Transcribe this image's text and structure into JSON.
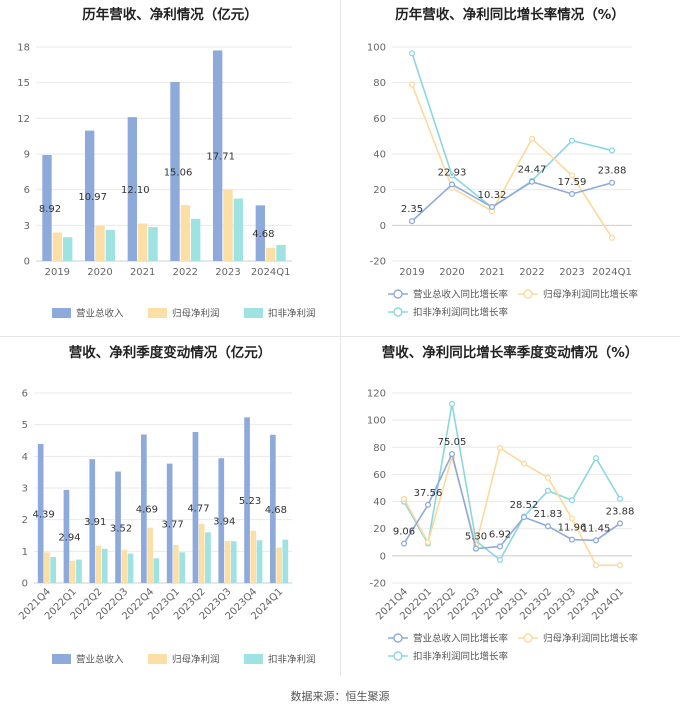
{
  "colors": {
    "revenue": "#8eaadb",
    "net_profit": "#fcdfa6",
    "deducted_profit": "#9ee2e2",
    "revenue_line": "#8eaadb",
    "net_line": "#fcd99c",
    "deducted_line": "#8ad8de",
    "grid": "#e9e9e9",
    "axis": "#cfcfcf"
  },
  "source": "数据来源：恒生聚源",
  "chart_data": [
    {
      "id": "annual_amounts",
      "type": "bar",
      "title": "历年营收、净利情况（亿元）",
      "categories": [
        "2019",
        "2020",
        "2021",
        "2022",
        "2023",
        "2024Q1"
      ],
      "ylim": [
        0,
        18
      ],
      "yticks": [
        0,
        3,
        6,
        9,
        12,
        15,
        18
      ],
      "series": [
        {
          "name": "营业总收入",
          "color_key": "revenue",
          "values": [
            8.92,
            10.97,
            12.1,
            15.06,
            17.71,
            4.68
          ],
          "labels": [
            "8.92",
            "10.97",
            "12.10",
            "15.06",
            "17.71",
            "4.68"
          ]
        },
        {
          "name": "归母净利润",
          "color_key": "net_profit",
          "values": [
            2.4,
            2.95,
            3.15,
            4.7,
            6.0,
            1.1
          ]
        },
        {
          "name": "扣非净利润",
          "color_key": "deducted_profit",
          "values": [
            2.0,
            2.6,
            2.85,
            3.55,
            5.25,
            1.35
          ]
        }
      ]
    },
    {
      "id": "annual_growth",
      "type": "line",
      "title": "历年营收、净利同比增长率情况（%）",
      "categories": [
        "2019",
        "2020",
        "2021",
        "2022",
        "2023",
        "2024Q1"
      ],
      "ylim": [
        -20,
        100
      ],
      "yticks": [
        -20,
        0,
        20,
        40,
        60,
        80,
        100
      ],
      "series": [
        {
          "name": "营业总收入同比增长率",
          "color_key": "revenue_line",
          "values": [
            2.35,
            22.93,
            10.32,
            24.47,
            17.59,
            23.88
          ],
          "labels": [
            "2.35",
            "22.93",
            "10.32",
            "24.47",
            "17.59",
            "23.88"
          ]
        },
        {
          "name": "归母净利润同比增长率",
          "color_key": "net_line",
          "values": [
            79,
            21,
            8,
            48.5,
            28,
            -7
          ]
        },
        {
          "name": "扣非净利润同比增长率",
          "color_key": "deducted_line",
          "values": [
            96.5,
            28,
            10,
            25,
            47.5,
            42
          ]
        }
      ]
    },
    {
      "id": "quarterly_amounts",
      "type": "bar",
      "title": "营收、净利季度变动情况（亿元）",
      "categories": [
        "2021Q4",
        "2022Q1",
        "2022Q2",
        "2022Q3",
        "2022Q4",
        "2023Q1",
        "2023Q2",
        "2023Q3",
        "2023Q4",
        "2024Q1"
      ],
      "ylim": [
        0,
        6
      ],
      "yticks": [
        0,
        1,
        2,
        3,
        4,
        5,
        6
      ],
      "series": [
        {
          "name": "营业总收入",
          "color_key": "revenue",
          "values": [
            4.39,
            2.94,
            3.91,
            3.52,
            4.69,
            3.77,
            4.77,
            3.94,
            5.23,
            4.68
          ],
          "labels": [
            "4.39",
            "2.94",
            "3.91",
            "3.52",
            "4.69",
            "3.77",
            "4.77",
            "3.94",
            "5.23",
            "4.68"
          ]
        },
        {
          "name": "归母净利润",
          "color_key": "net_profit",
          "values": [
            0.97,
            0.7,
            1.18,
            1.05,
            1.75,
            1.2,
            1.87,
            1.33,
            1.65,
            1.12
          ]
        },
        {
          "name": "扣非净利润",
          "color_key": "deducted_profit",
          "values": [
            0.82,
            0.74,
            1.08,
            0.93,
            0.78,
            0.97,
            1.6,
            1.32,
            1.35,
            1.37
          ]
        }
      ]
    },
    {
      "id": "quarterly_growth",
      "type": "line",
      "title": "营收、净利同比增长率季度变动情况（%）",
      "categories": [
        "2021Q4",
        "2022Q1",
        "2022Q2",
        "2022Q3",
        "2022Q4",
        "2023Q1",
        "2023Q2",
        "2023Q3",
        "2023Q4",
        "2024Q1"
      ],
      "ylim": [
        -20,
        120
      ],
      "yticks": [
        -20,
        0,
        20,
        40,
        60,
        80,
        100,
        120
      ],
      "series": [
        {
          "name": "营业总收入同比增长率",
          "color_key": "revenue_line",
          "values": [
            9.06,
            37.56,
            75.05,
            5.3,
            6.92,
            28.52,
            21.83,
            11.96,
            11.45,
            23.88
          ],
          "labels": [
            "9.06",
            "37.56",
            "75.05",
            "5.30",
            "6.92",
            "28.52",
            "21.83",
            "11.96",
            "11.45",
            "23.88"
          ]
        },
        {
          "name": "归母净利润同比增长率",
          "color_key": "net_line",
          "values": [
            42,
            10,
            73,
            8,
            79.5,
            68,
            57.5,
            27.5,
            -7,
            -7
          ]
        },
        {
          "name": "扣非净利润同比增长率",
          "color_key": "deducted_line",
          "values": [
            40,
            9,
            112,
            11,
            -3,
            29,
            48,
            41,
            72,
            42
          ]
        }
      ]
    }
  ]
}
